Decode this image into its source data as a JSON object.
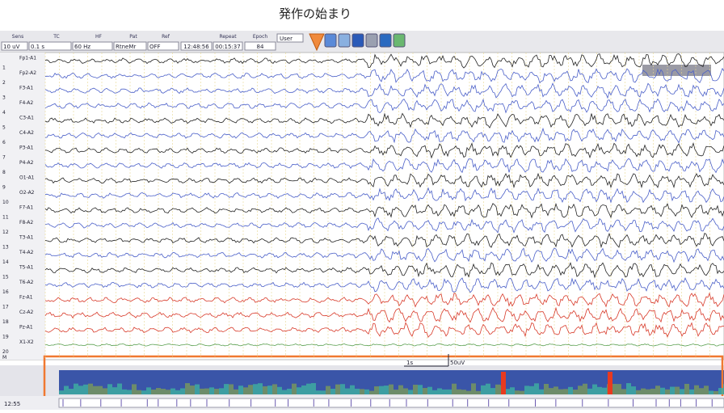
{
  "annotation": "発作の始まり",
  "toolbar": {
    "labels": [
      "Sens",
      "TC",
      "HF",
      "Pat",
      "Ref",
      "Repeat",
      "Epoch"
    ],
    "selects": [
      "10 uV",
      "0.1 s",
      "60 Hz",
      "RtneMr",
      "OFF"
    ],
    "clock": "12:48:56",
    "elapsed": "00:15:37",
    "epoch": "84",
    "user": "User"
  },
  "channels": [
    {
      "number": "1",
      "label": "Fp1-A1",
      "color": "#222222"
    },
    {
      "number": "2",
      "label": "Fp2-A2",
      "color": "#4a5fc8"
    },
    {
      "number": "3",
      "label": "F3-A1",
      "color": "#4a5fc8"
    },
    {
      "number": "4",
      "label": "F4-A2",
      "color": "#4a5fc8"
    },
    {
      "number": "5",
      "label": "C3-A1",
      "color": "#222222"
    },
    {
      "number": "6",
      "label": "C4-A2",
      "color": "#4a5fc8"
    },
    {
      "number": "7",
      "label": "P3-A1",
      "color": "#222222"
    },
    {
      "number": "8",
      "label": "P4-A2",
      "color": "#4a5fc8"
    },
    {
      "number": "9",
      "label": "O1-A1",
      "color": "#222222"
    },
    {
      "number": "10",
      "label": "O2-A2",
      "color": "#4a5fc8"
    },
    {
      "number": "11",
      "label": "F7-A1",
      "color": "#222222"
    },
    {
      "number": "12",
      "label": "F8-A2",
      "color": "#4a5fc8"
    },
    {
      "number": "13",
      "label": "T3-A1",
      "color": "#222222"
    },
    {
      "number": "14",
      "label": "T4-A2",
      "color": "#4a5fc8"
    },
    {
      "number": "15",
      "label": "T5-A1",
      "color": "#222222"
    },
    {
      "number": "16",
      "label": "T6-A2",
      "color": "#4a5fc8"
    },
    {
      "number": "17",
      "label": "Fz-A1",
      "color": "#d83a2a"
    },
    {
      "number": "18",
      "label": "Cz-A2",
      "color": "#d83a2a"
    },
    {
      "number": "19",
      "label": "Pz-A1",
      "color": "#d83a2a"
    },
    {
      "number": "20",
      "label": "X1-X2",
      "color": "#5aa050"
    }
  ],
  "extra_row": "M",
  "scale": {
    "time": "1s",
    "amplitude": "50uV"
  },
  "footer": {
    "time": "12:55"
  }
}
